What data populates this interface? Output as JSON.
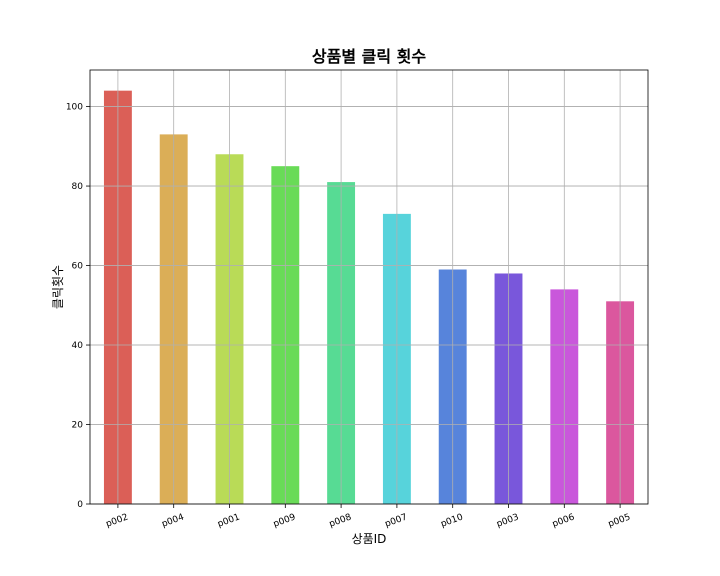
{
  "chart_data": {
    "type": "bar",
    "title": "상품별 클릭 횟수",
    "xlabel": "상품ID",
    "ylabel": "클릭횟수",
    "categories": [
      "p002",
      "p004",
      "p001",
      "p009",
      "p008",
      "p007",
      "p010",
      "p003",
      "p006",
      "p005"
    ],
    "values": [
      104,
      93,
      88,
      85,
      81,
      73,
      59,
      58,
      54,
      51
    ],
    "colors": [
      "#db5f57",
      "#dbae57",
      "#b9db57",
      "#69db57",
      "#57db94",
      "#57d3db",
      "#5784db",
      "#7957db",
      "#c957db",
      "#db579e"
    ],
    "ylim": [
      0,
      109.2
    ],
    "yticks": [
      0,
      20,
      40,
      60,
      80,
      100
    ],
    "grid": true,
    "legend": "none"
  }
}
